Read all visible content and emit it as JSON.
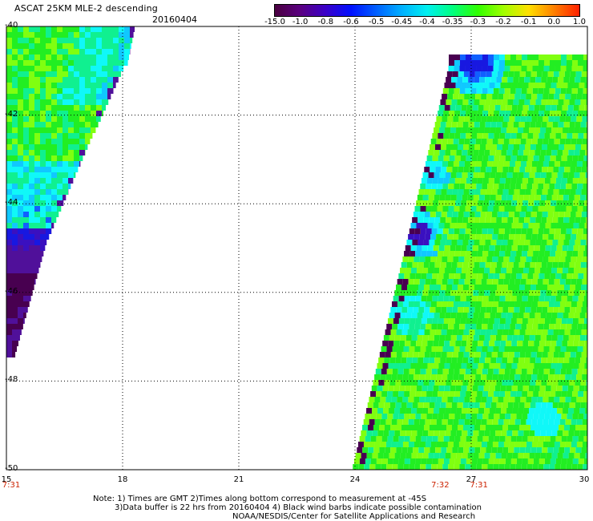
{
  "header": {
    "title": "ASCAT 25KM MLE-2 descending",
    "date": "20160404"
  },
  "colorbar": {
    "ticks": [
      "-15.0",
      "-1.0",
      "-0.8",
      "-0.6",
      "-0.5",
      "-0.45",
      "-0.4",
      "-0.35",
      "-0.3",
      "-0.2",
      "-0.1",
      "0.0",
      "1.0"
    ],
    "colors": [
      "#4a0040",
      "#5a0080",
      "#3a00c8",
      "#0010ff",
      "#0060ff",
      "#00b0ff",
      "#00f0f0",
      "#00ff80",
      "#30ff00",
      "#a0ff00",
      "#ffe000",
      "#ff8000",
      "#ff2000"
    ]
  },
  "axes": {
    "lat_labels": [
      "-40",
      "-42",
      "-44",
      "-46",
      "-48",
      "-50"
    ],
    "lon_labels": [
      "15",
      "18",
      "21",
      "24",
      "27",
      "30"
    ],
    "lat_range": [
      -50,
      -40
    ],
    "lon_range": [
      15,
      30
    ]
  },
  "time_labels": [
    {
      "text": "7:31",
      "lon": 15
    },
    {
      "text": "7:32",
      "lon": 26.2
    },
    {
      "text": "7:31",
      "lon": 27.2
    }
  ],
  "note": {
    "line1": "Note: 1) Times are GMT 2)Times along bottom correspond to measurement at -45S",
    "line2": "3)Data buffer is 22 hrs from 20160404 4) Black wind barbs indicate possible contamination",
    "line3": "NOAA/NESDIS/Center for Satellite Applications and Research"
  },
  "map_colors": {
    "green": "#22ee22",
    "lime": "#80ff10",
    "teal": "#10f090",
    "cyan": "#10f8f8",
    "lightblue": "#10c8ff",
    "blue": "#1060ff",
    "darkblue": "#1818e0",
    "indigo": "#3a10c0",
    "purple": "#50109a",
    "darkpurple": "#480050"
  }
}
